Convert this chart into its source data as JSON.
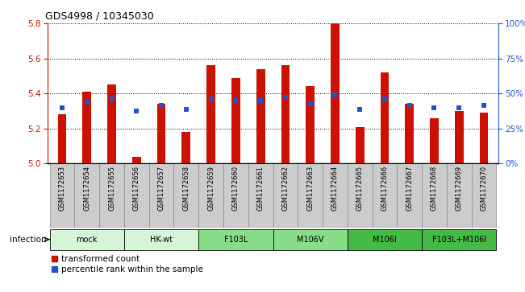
{
  "title": "GDS4998 / 10345030",
  "samples": [
    "GSM1172653",
    "GSM1172654",
    "GSM1172655",
    "GSM1172656",
    "GSM1172657",
    "GSM1172658",
    "GSM1172659",
    "GSM1172660",
    "GSM1172661",
    "GSM1172662",
    "GSM1172663",
    "GSM1172664",
    "GSM1172665",
    "GSM1172666",
    "GSM1172667",
    "GSM1172668",
    "GSM1172669",
    "GSM1172670"
  ],
  "red_values": [
    5.28,
    5.41,
    5.45,
    5.04,
    5.34,
    5.18,
    5.56,
    5.49,
    5.54,
    5.56,
    5.44,
    5.8,
    5.21,
    5.52,
    5.34,
    5.26,
    5.3,
    5.29
  ],
  "blue_values": [
    5.32,
    5.35,
    5.37,
    5.3,
    5.33,
    5.31,
    5.37,
    5.36,
    5.36,
    5.38,
    5.34,
    5.39,
    5.31,
    5.37,
    5.33,
    5.32,
    5.32,
    5.33
  ],
  "ylim": [
    5.0,
    5.8
  ],
  "yticks": [
    5.0,
    5.2,
    5.4,
    5.6,
    5.8
  ],
  "y2ticks": [
    0,
    25,
    50,
    75,
    100
  ],
  "y2labels": [
    "0%",
    "25%",
    "50%",
    "75%",
    "100%"
  ],
  "groups": [
    {
      "label": "mock",
      "color": "#d6f5d6",
      "start": 0,
      "end": 2
    },
    {
      "label": "HK-wt",
      "color": "#d6f5d6",
      "start": 3,
      "end": 5
    },
    {
      "label": "F103L",
      "color": "#88dd88",
      "start": 6,
      "end": 8
    },
    {
      "label": "M106V",
      "color": "#88dd88",
      "start": 9,
      "end": 11
    },
    {
      "label": "M106I",
      "color": "#44bb44",
      "start": 12,
      "end": 14
    },
    {
      "label": "F103L+M106I",
      "color": "#44bb44",
      "start": 15,
      "end": 17
    }
  ],
  "bar_width": 0.35,
  "red_color": "#cc1100",
  "blue_color": "#2255cc",
  "group_label": "infection",
  "legend_red": "transformed count",
  "legend_blue": "percentile rank within the sample",
  "cell_color": "#cccccc",
  "cell_border": "#888888"
}
